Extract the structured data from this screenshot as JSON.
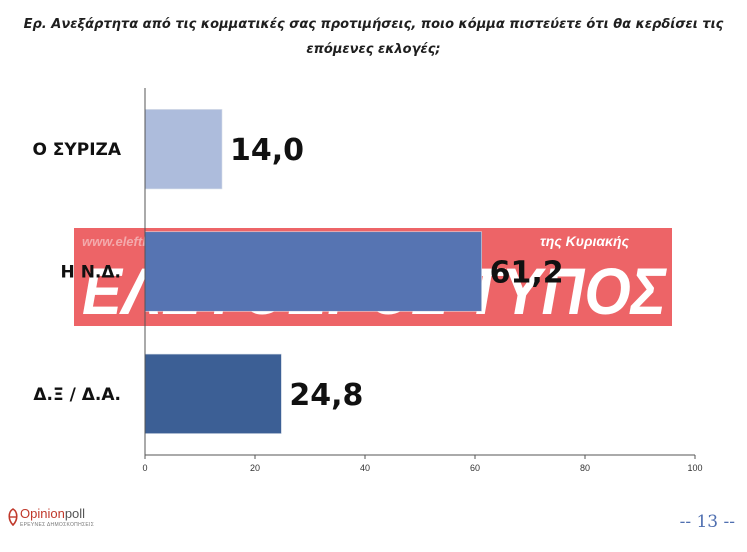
{
  "question": "Ερ. Ανεξάρτητα από τις κομματικές σας προτιμήσεις, ποιο κόμμα πιστεύετε ότι θα κερδίσει τις επόμενες εκλογές;",
  "chart_data": {
    "type": "bar",
    "orientation": "horizontal",
    "categories": [
      "Ο ΣΥΡΙΖΑ",
      "Η Ν.Δ.",
      "Δ.Ξ / Δ.Α."
    ],
    "values": [
      14.0,
      61.2,
      24.8
    ],
    "value_labels": [
      "14,0",
      "61,2",
      "24,8"
    ],
    "xlim": [
      0,
      100
    ],
    "xticks": [
      0,
      20,
      40,
      60,
      80,
      100
    ],
    "grid": false,
    "bar_colors": [
      "#adbcdc",
      "#5674b2",
      "#3c5f95"
    ]
  },
  "watermark": {
    "url": "www.eleftherostypos.gr",
    "brand": "ΕΛΕΥΘΕΡΟΣ ΤΥΠΟΣ",
    "subtitle": "της Κυριακής",
    "color": "#e8383d"
  },
  "logo": {
    "name_part1": "Opinion",
    "name_part2": "poll",
    "tagline": "ΕΡΕΥΝΕΣ ΔΗΜΟΣΚΟΠΗΣΕΙΣ"
  },
  "page_number": "-- 13 --"
}
